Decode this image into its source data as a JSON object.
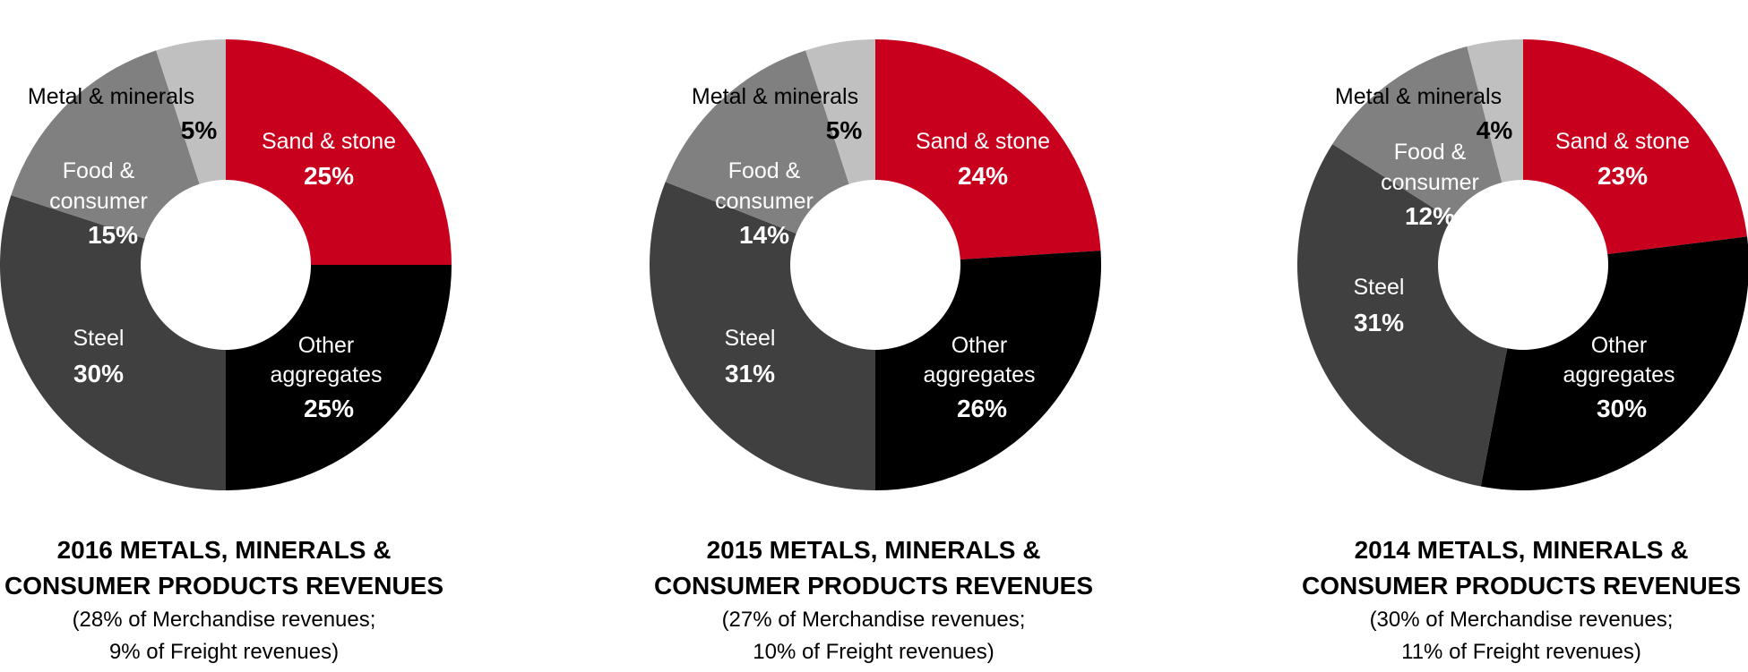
{
  "chart_data": [
    {
      "type": "pie",
      "donut": true,
      "title_lines": [
        "2016 METALS, MINERALS &",
        "CONSUMER PRODUCTS REVENUES"
      ],
      "subtitle_lines": [
        "(28% of Merchandise revenues;",
        "9% of Freight revenues)"
      ],
      "slices": [
        {
          "label": "Sand & stone",
          "value": 25,
          "value_label": "25%",
          "color": "#c8001e"
        },
        {
          "label": "Other aggregates",
          "value": 25,
          "value_label": "25%",
          "color": "#000000"
        },
        {
          "label": "Steel",
          "value": 30,
          "value_label": "30%",
          "color": "#404040"
        },
        {
          "label": "Food & consumer",
          "value": 15,
          "value_label": "15%",
          "color": "#808080"
        },
        {
          "label": "Metal & minerals",
          "value": 5,
          "value_label": "5%",
          "color": "#c0c0c0"
        }
      ]
    },
    {
      "type": "pie",
      "donut": true,
      "title_lines": [
        "2015 METALS, MINERALS &",
        "CONSUMER PRODUCTS REVENUES"
      ],
      "subtitle_lines": [
        "(27% of Merchandise revenues;",
        "10% of Freight revenues)"
      ],
      "slices": [
        {
          "label": "Sand & stone",
          "value": 24,
          "value_label": "24%",
          "color": "#c8001e"
        },
        {
          "label": "Other aggregates",
          "value": 26,
          "value_label": "26%",
          "color": "#000000"
        },
        {
          "label": "Steel",
          "value": 31,
          "value_label": "31%",
          "color": "#404040"
        },
        {
          "label": "Food & consumer",
          "value": 14,
          "value_label": "14%",
          "color": "#808080"
        },
        {
          "label": "Metal & minerals",
          "value": 5,
          "value_label": "5%",
          "color": "#c0c0c0"
        }
      ]
    },
    {
      "type": "pie",
      "donut": true,
      "title_lines": [
        "2014 METALS, MINERALS &",
        "CONSUMER PRODUCTS REVENUES"
      ],
      "subtitle_lines": [
        "(30% of Merchandise revenues;",
        "11% of Freight revenues)"
      ],
      "slices": [
        {
          "label": "Sand & stone",
          "value": 23,
          "value_label": "23%",
          "color": "#c8001e"
        },
        {
          "label": "Other aggregates",
          "value": 30,
          "value_label": "30%",
          "color": "#000000"
        },
        {
          "label": "Steel",
          "value": 31,
          "value_label": "31%",
          "color": "#404040"
        },
        {
          "label": "Food & consumer",
          "value": 12,
          "value_label": "12%",
          "color": "#808080"
        },
        {
          "label": "Metal & minerals",
          "value": 4,
          "value_label": "4%",
          "color": "#c0c0c0"
        }
      ]
    }
  ]
}
